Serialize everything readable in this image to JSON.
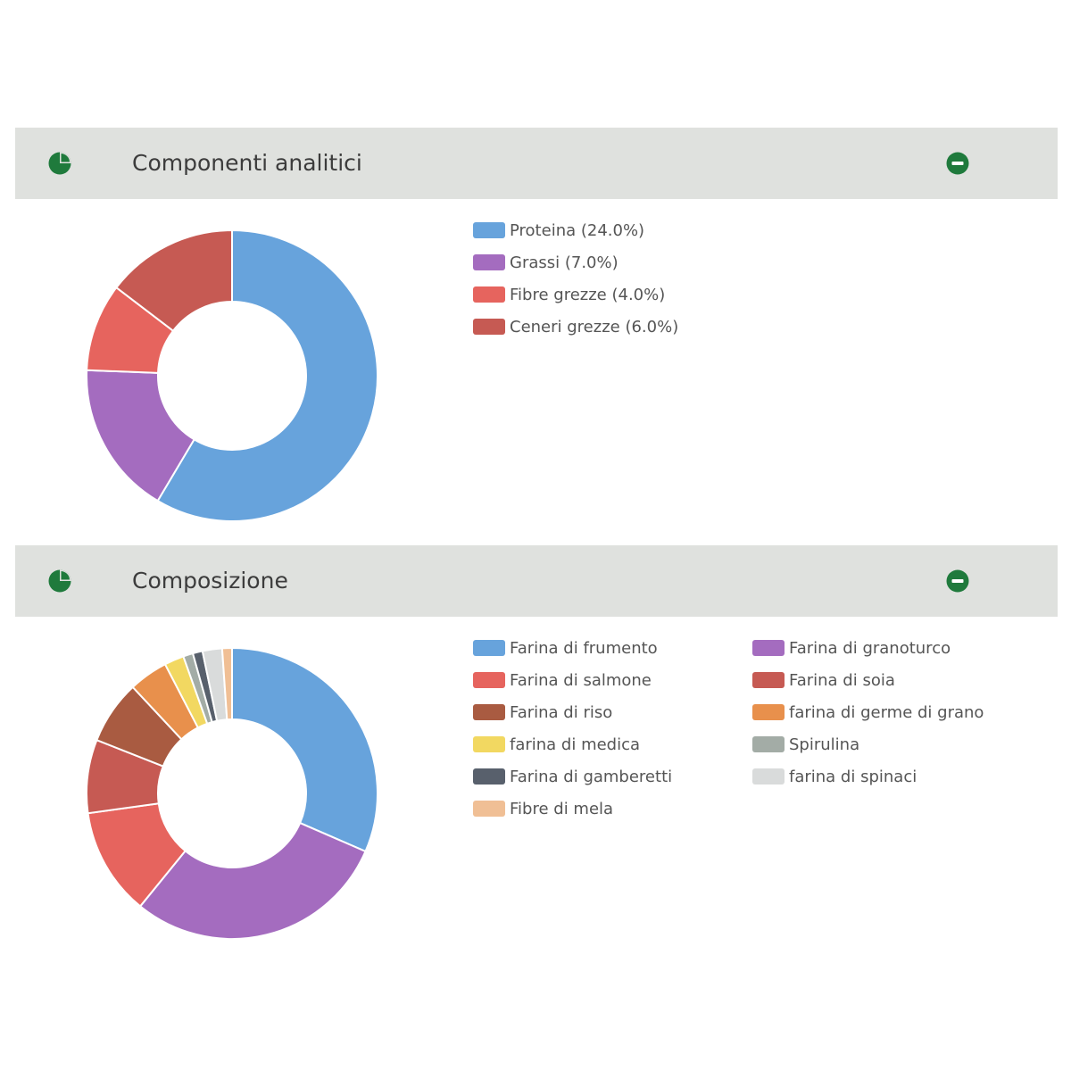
{
  "panels": [
    {
      "title": "Componenti analitici",
      "icons": {
        "left": "pie-chart-icon",
        "right": "minus-circle-icon"
      },
      "chart_data": {
        "type": "pie",
        "variant": "doughnut",
        "title": "",
        "labels": [
          "Proteina (24.0%)",
          "Grassi (7.0%)",
          "Fibre grezze (4.0%)",
          "Ceneri grezze (6.0%)"
        ],
        "values": [
          24.0,
          7.0,
          4.0,
          6.0
        ],
        "colors": [
          "#67a3dc",
          "#a46cbf",
          "#e6645e",
          "#c65a53"
        ],
        "legend": "right"
      }
    },
    {
      "title": "Composizione",
      "icons": {
        "left": "pie-chart-icon",
        "right": "minus-circle-icon"
      },
      "chart_data": {
        "type": "pie",
        "variant": "doughnut",
        "title": "",
        "labels": [
          "Farina di frumento",
          "Farina di granoturco",
          "Farina di salmone",
          "Farina di soia",
          "Farina di riso",
          "farina di germe di grano",
          "farina di medica",
          "Spirulina",
          "Farina di gamberetti",
          "farina di spinaci",
          "Fibre di mela"
        ],
        "values": [
          29.0,
          27.0,
          11.0,
          7.5,
          6.5,
          4.0,
          2.0,
          1.0,
          1.0,
          2.0,
          1.0
        ],
        "colors": [
          "#67a3dc",
          "#a46cbf",
          "#e6645e",
          "#c65a53",
          "#a95b41",
          "#e8904c",
          "#f2d861",
          "#a3aca6",
          "#58606c",
          "#d9dbdb",
          "#f0bf95"
        ],
        "legend": "right"
      }
    }
  ]
}
